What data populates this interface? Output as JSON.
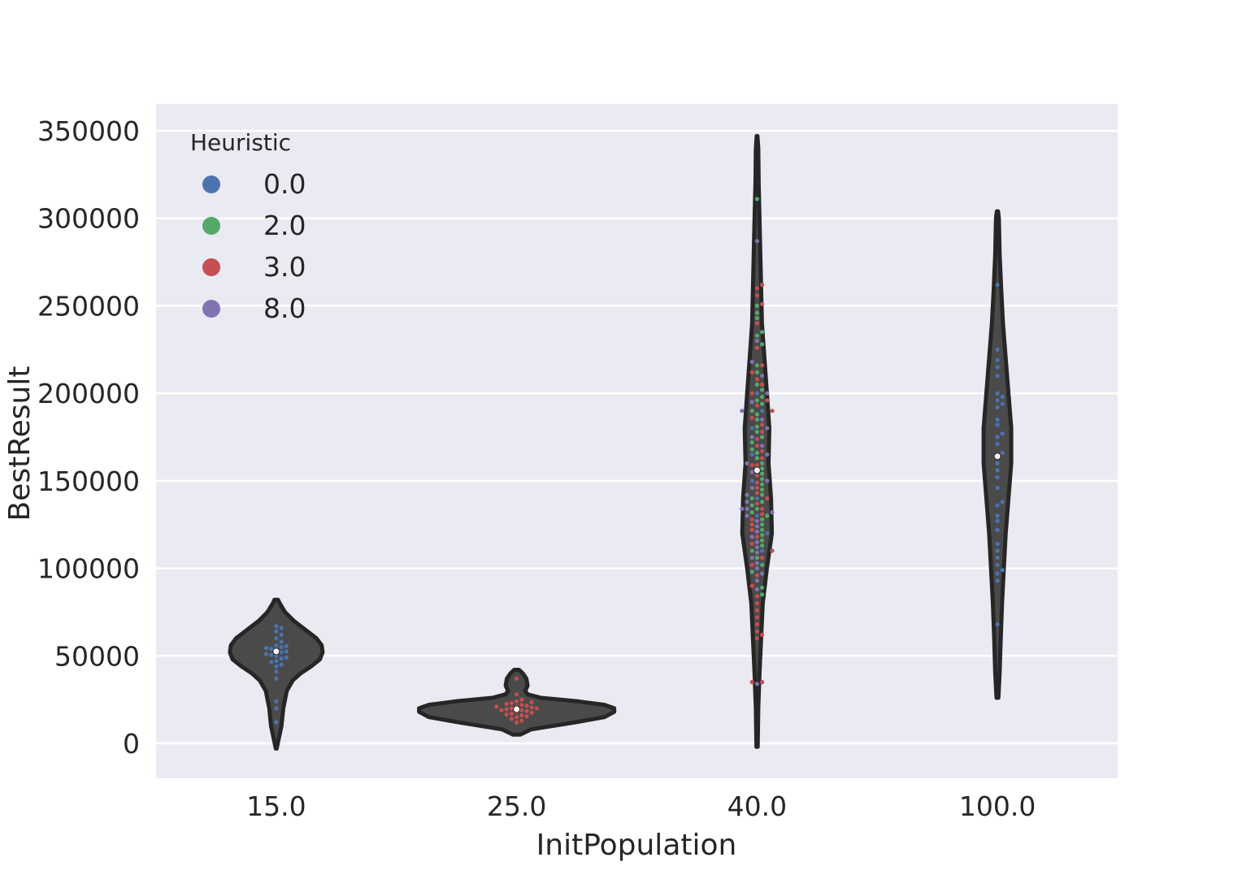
{
  "chart_data": {
    "type": "violin",
    "title": "",
    "xlabel": "InitPopulation",
    "ylabel": "BestResult",
    "categories": [
      "15.0",
      "25.0",
      "40.0",
      "100.0"
    ],
    "ylim": [
      -20000,
      365000
    ],
    "yticks": [
      0,
      50000,
      100000,
      150000,
      200000,
      250000,
      300000,
      350000
    ],
    "ytick_labels": [
      "0",
      "50000",
      "100000",
      "150000",
      "200000",
      "250000",
      "300000",
      "350000"
    ],
    "grid": true,
    "legend": {
      "title": "Heuristic",
      "placement": "top-left",
      "entries": [
        {
          "label": "0.0",
          "color": "#4c72b0"
        },
        {
          "label": "2.0",
          "color": "#55a868"
        },
        {
          "label": "3.0",
          "color": "#c44e52"
        },
        {
          "label": "8.0",
          "color": "#8172b2"
        }
      ]
    },
    "colors": {
      "background": "#eaeaf2",
      "grid": "#ffffff",
      "violin_fill": "#4a4a4a",
      "violin_edge": "#262626",
      "median": "#ffffff"
    },
    "violins": [
      {
        "category": "15.0",
        "median": 52500,
        "profile": [
          [
            -3000,
            0.005
          ],
          [
            3000,
            0.03
          ],
          [
            10000,
            0.06
          ],
          [
            20000,
            0.08
          ],
          [
            30000,
            0.12
          ],
          [
            36000,
            0.19
          ],
          [
            40000,
            0.28
          ],
          [
            44000,
            0.4
          ],
          [
            48000,
            0.5
          ],
          [
            52000,
            0.53
          ],
          [
            56000,
            0.52
          ],
          [
            60000,
            0.46
          ],
          [
            65000,
            0.33
          ],
          [
            70000,
            0.2
          ],
          [
            75000,
            0.1
          ],
          [
            80000,
            0.04
          ],
          [
            82000,
            0.02
          ]
        ],
        "points": [
          {
            "h": "0.0",
            "values": [
              67000,
              66000,
              64000,
              62000,
              60000,
              58000,
              56000,
              55500,
              55000,
              54500,
              54000,
              53000,
              52500,
              52000,
              51000,
              50500,
              50000,
              49000,
              48500,
              47000,
              46500,
              45000,
              44000,
              41000,
              37000,
              24000,
              20000,
              12000
            ]
          }
        ]
      },
      {
        "category": "25.0",
        "median": 19500,
        "profile": [
          [
            5000,
            0.03
          ],
          [
            8000,
            0.12
          ],
          [
            12000,
            0.48
          ],
          [
            15000,
            0.72
          ],
          [
            18000,
            0.8
          ],
          [
            20000,
            0.8
          ],
          [
            22000,
            0.72
          ],
          [
            24000,
            0.5
          ],
          [
            26000,
            0.2
          ],
          [
            28000,
            0.09
          ],
          [
            30000,
            0.07
          ],
          [
            33000,
            0.09
          ],
          [
            37000,
            0.08
          ],
          [
            40000,
            0.05
          ],
          [
            42000,
            0.02
          ]
        ],
        "points": [
          {
            "h": "3.0",
            "values": [
              37000,
              28000,
              25000,
              24000,
              23500,
              23000,
              22500,
              22000,
              21500,
              21000,
              21000,
              20500,
              20000,
              20000,
              19500,
              19000,
              19000,
              18500,
              18000,
              17500,
              17000,
              16500,
              16000,
              15500,
              15000,
              14000,
              13000,
              12000
            ]
          }
        ]
      },
      {
        "category": "40.0",
        "median": 156000,
        "profile": [
          [
            -2000,
            0.008
          ],
          [
            20000,
            0.015
          ],
          [
            40000,
            0.03
          ],
          [
            60000,
            0.05
          ],
          [
            80000,
            0.07
          ],
          [
            100000,
            0.12
          ],
          [
            120000,
            0.18
          ],
          [
            140000,
            0.17
          ],
          [
            160000,
            0.14
          ],
          [
            180000,
            0.15
          ],
          [
            200000,
            0.12
          ],
          [
            220000,
            0.09
          ],
          [
            240000,
            0.06
          ],
          [
            260000,
            0.05
          ],
          [
            280000,
            0.04
          ],
          [
            300000,
            0.03
          ],
          [
            320000,
            0.02
          ],
          [
            340000,
            0.015
          ],
          [
            347000,
            0.005
          ]
        ],
        "points": [
          {
            "h": "0.0",
            "values": [
              200000,
              190000,
              180000,
              165000,
              150000,
              140000,
              130000,
              120000,
              110000
            ]
          },
          {
            "h": "2.0",
            "values": [
              311000,
              250000,
              246000,
              243000,
              235000,
              233000,
              228000,
              216000,
              212000,
              205000,
              202000,
              198000,
              196000,
              194000,
              190000,
              188000,
              185000,
              181000,
              178000,
              175000,
              172000,
              168000,
              166000,
              163000,
              160000,
              157000,
              154000,
              151000,
              148000,
              145000,
              142000,
              140000,
              138000,
              136000,
              134000,
              132000,
              130000,
              128000,
              125000,
              122000,
              119000,
              116000,
              113000,
              110000,
              106000,
              102000,
              98000,
              89000,
              85000
            ]
          },
          {
            "h": "3.0",
            "values": [
              262000,
              260000,
              256000,
              251000,
              240000,
              226000,
              216000,
              212000,
              208000,
              205000,
              200000,
              196000,
              193000,
              190000,
              186000,
              182000,
              178000,
              174000,
              170000,
              167000,
              163000,
              159000,
              159000,
              156000,
              153000,
              149000,
              146000,
              143000,
              140000,
              137000,
              134000,
              131000,
              128000,
              125000,
              122000,
              118000,
              114000,
              110000,
              106000,
              102000,
              96000,
              90000,
              84000,
              80000,
              76000,
              72000,
              68000,
              64000,
              62000,
              60000,
              35000,
              35000
            ]
          },
          {
            "h": "8.0",
            "values": [
              287000,
              230000,
              218000,
              210000,
              200000,
              195000,
              190000,
              185000,
              180000,
              175000,
              170000,
              165000,
              160000,
              155000,
              150000,
              146000,
              142000,
              138000,
              134000,
              134000,
              132000,
              130000,
              127000,
              124000,
              121000,
              118000,
              115000,
              112000,
              109000,
              106000,
              103000,
              100000,
              97000,
              93000,
              88000,
              34000
            ]
          }
        ]
      },
      {
        "category": "100.0",
        "median": 164000,
        "profile": [
          [
            26000,
            0.005
          ],
          [
            40000,
            0.012
          ],
          [
            60000,
            0.018
          ],
          [
            80000,
            0.025
          ],
          [
            100000,
            0.035
          ],
          [
            120000,
            0.045
          ],
          [
            140000,
            0.06
          ],
          [
            160000,
            0.075
          ],
          [
            180000,
            0.075
          ],
          [
            200000,
            0.06
          ],
          [
            220000,
            0.045
          ],
          [
            240000,
            0.03
          ],
          [
            260000,
            0.02
          ],
          [
            280000,
            0.012
          ],
          [
            300000,
            0.008
          ],
          [
            304000,
            0.003
          ]
        ],
        "points": [
          {
            "h": "0.0",
            "values": [
              262000,
              225000,
              219000,
              215000,
              210000,
              200000,
              198000,
              196000,
              194000,
              192000,
              185000,
              182000,
              177000,
              175000,
              171000,
              166000,
              164000,
              160000,
              156000,
              152000,
              146000,
              138000,
              136000,
              130000,
              127000,
              122000,
              114000,
              110000,
              106000,
              102000,
              99000,
              97000,
              93000,
              68000
            ]
          }
        ]
      }
    ]
  }
}
